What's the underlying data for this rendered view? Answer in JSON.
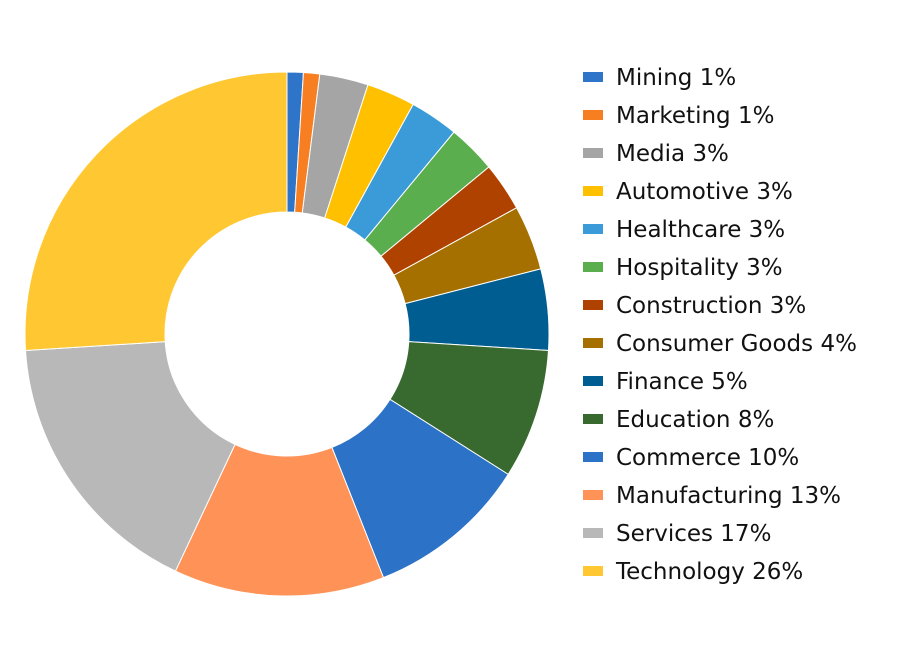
{
  "chart_data": {
    "type": "donut",
    "title": "",
    "legend_position": "right",
    "slices": [
      {
        "label": "Mining 1%",
        "value": 1,
        "color": "#2E75C9"
      },
      {
        "label": "Marketing 1%",
        "value": 1,
        "color": "#F77F22"
      },
      {
        "label": "Media 3%",
        "value": 3,
        "color": "#A5A5A5"
      },
      {
        "label": "Automotive 3%",
        "value": 3,
        "color": "#FFC000"
      },
      {
        "label": "Healthcare 3%",
        "value": 3,
        "color": "#3A9BD8"
      },
      {
        "label": "Hospitality 3%",
        "value": 3,
        "color": "#5BAE4D"
      },
      {
        "label": "Construction 3%",
        "value": 3,
        "color": "#B04200"
      },
      {
        "label": "Consumer Goods 4%",
        "value": 4,
        "color": "#A57000"
      },
      {
        "label": "Finance 5%",
        "value": 5,
        "color": "#005D92"
      },
      {
        "label": "Education 8%",
        "value": 8,
        "color": "#38692F"
      },
      {
        "label": "Commerce 10%",
        "value": 10,
        "color": "#2C72C7"
      },
      {
        "label": "Manufacturing 13%",
        "value": 13,
        "color": "#FF9257"
      },
      {
        "label": "Services 17%",
        "value": 17,
        "color": "#B8B8B8"
      },
      {
        "label": "Technology 26%",
        "value": 26,
        "color": "#FFC832"
      }
    ]
  }
}
